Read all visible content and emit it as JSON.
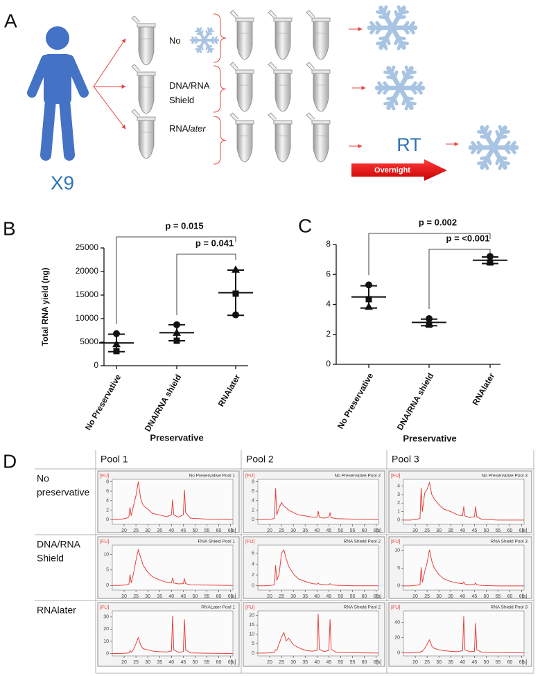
{
  "panel_labels": [
    "A",
    "B",
    "C",
    "D"
  ],
  "diagram": {
    "subject_count": "X9",
    "conditions": [
      {
        "lines": [
          "No"
        ]
      },
      {
        "lines": [
          "DNA/RNA",
          "Shield"
        ]
      },
      {
        "lines": [
          "RNA"
        ],
        "italic_suffix": "later"
      }
    ],
    "rt": "RT",
    "arrow_label": "Overnight"
  },
  "grid_d": {
    "columns": [
      "Pool 1",
      "Pool 2",
      "Pool 3"
    ],
    "rows": [
      [
        "No",
        "preservative"
      ],
      [
        "DNA/RNA",
        "Shield"
      ],
      [
        "RNAlater"
      ]
    ]
  },
  "chart_data": [
    {
      "type": "dot",
      "y_label": "Total RNA yield (ng)",
      "x_label": "Preservative",
      "categories": [
        "No Preservative",
        "DNA/RNA shield",
        "RNAlater"
      ],
      "series": [
        {
          "marker": "circle",
          "color": "#111111",
          "values": [
            6800,
            8700,
            10800
          ]
        },
        {
          "marker": "square",
          "color": "#111111",
          "values": [
            3100,
            5300,
            15300
          ]
        },
        {
          "marker": "triangle",
          "color": "#111111",
          "values": [
            4600,
            7000,
            20400
          ]
        }
      ],
      "means": [
        4833,
        7000,
        15500
      ],
      "sd": [
        1850,
        1700,
        4800
      ],
      "ylim": [
        0,
        25000
      ],
      "yticks": [
        0,
        5000,
        10000,
        15000,
        20000,
        25000
      ],
      "comparisons": [
        {
          "label": "p = 0.015",
          "from": 0,
          "to": 2
        },
        {
          "label": "p = 0.041",
          "from": 1,
          "to": 2
        }
      ]
    },
    {
      "type": "dot",
      "x_label": "Preservative",
      "categories": [
        "No Preservative",
        "DNA/RNA shield",
        "RNAlater"
      ],
      "series": [
        {
          "marker": "circle",
          "color": "#111111",
          "values": [
            5.3,
            3.05,
            7.2
          ]
        },
        {
          "marker": "square",
          "color": "#111111",
          "values": [
            4.35,
            2.65,
            6.8
          ]
        },
        {
          "marker": "triangle",
          "color": "#111111",
          "values": [
            3.85,
            2.7,
            6.85
          ]
        }
      ],
      "means": [
        4.5,
        2.8,
        6.95
      ],
      "sd": [
        0.74,
        0.22,
        0.22
      ],
      "ylim": [
        0,
        8
      ],
      "yticks": [
        0,
        2,
        4,
        6,
        8
      ],
      "comparisons": [
        {
          "label": "p = 0.002",
          "from": 0,
          "to": 2
        },
        {
          "label": "p = <0.001",
          "from": 1,
          "to": 2
        }
      ]
    },
    {
      "type": "line",
      "title": "No Preservative Pool 1",
      "color": "#e8413c",
      "x_unit": "[s]",
      "y_unit": "[FU]",
      "x": [
        15,
        18,
        21,
        22,
        22.5,
        23,
        24,
        25,
        26,
        27,
        28,
        30,
        32,
        35,
        38,
        40,
        40.5,
        41,
        43,
        45,
        45.5,
        46,
        48,
        55,
        66
      ],
      "values": [
        0,
        0,
        0.3,
        0.5,
        2.6,
        0.8,
        3,
        5,
        8,
        4.5,
        3,
        2.2,
        1.3,
        1,
        0.6,
        1,
        4.2,
        1,
        0.5,
        1,
        6.3,
        1.5,
        0.3,
        0.1,
        0
      ],
      "xlim": [
        15,
        66
      ],
      "xticks": [
        20,
        25,
        30,
        35,
        40,
        45,
        50,
        55,
        60,
        65
      ],
      "ylim": [
        -1,
        8.5
      ],
      "yticks": [
        0,
        2,
        4,
        6,
        8
      ]
    },
    {
      "type": "line",
      "title": "No Preservative Pool 2",
      "color": "#e8413c",
      "x_unit": "[s]",
      "y_unit": "[FU]",
      "x": [
        15,
        18,
        21,
        22,
        22.5,
        23,
        24,
        25,
        26,
        27,
        28,
        30,
        32,
        35,
        38,
        40,
        40.5,
        41,
        43,
        45,
        45.5,
        46,
        48,
        55,
        66
      ],
      "values": [
        0,
        0,
        0.1,
        0.3,
        6.6,
        1,
        2.5,
        3.6,
        2.8,
        2.5,
        2,
        1.5,
        1,
        0.8,
        0.5,
        0.5,
        1.8,
        0.5,
        0.3,
        0.5,
        1.5,
        0.4,
        0.2,
        0.1,
        0
      ],
      "xlim": [
        15,
        66
      ],
      "xticks": [
        20,
        25,
        30,
        35,
        40,
        45,
        50,
        55,
        60,
        65
      ],
      "ylim": [
        -1,
        8.5
      ],
      "yticks": [
        0,
        2,
        4,
        6,
        8
      ]
    },
    {
      "type": "line",
      "title": "No Preservative Pool 3",
      "color": "#e8413c",
      "x_unit": "[s]",
      "y_unit": "[FU]",
      "x": [
        15,
        18,
        21,
        22,
        22.5,
        23,
        24,
        25,
        26,
        27,
        28,
        30,
        32,
        35,
        38,
        40,
        40.5,
        41,
        43,
        45,
        45.5,
        46,
        48,
        55,
        66
      ],
      "values": [
        0,
        0,
        0.1,
        0.2,
        3.8,
        1,
        3.2,
        3.6,
        4.4,
        3,
        2.5,
        1.8,
        1.3,
        1,
        0.6,
        0.5,
        1.6,
        0.5,
        0.3,
        0.4,
        1.6,
        0.4,
        0.1,
        0,
        0
      ],
      "xlim": [
        15,
        66
      ],
      "xticks": [
        20,
        25,
        30,
        35,
        40,
        45,
        50,
        55,
        60,
        65
      ],
      "ylim": [
        -0.5,
        4.8
      ],
      "yticks": [
        0,
        1,
        2,
        3,
        4
      ]
    },
    {
      "type": "line",
      "title": "RNA Shield Pool 1",
      "color": "#e8413c",
      "x_unit": "[s]",
      "y_unit": "[FU]",
      "x": [
        15,
        18,
        21,
        22,
        22.5,
        23,
        24,
        25,
        26,
        27,
        28,
        30,
        32,
        35,
        38,
        40,
        40.5,
        41,
        43,
        45,
        45.5,
        46,
        48,
        55,
        66
      ],
      "values": [
        0,
        0,
        0.2,
        0.4,
        3.5,
        0.8,
        4,
        8,
        11.5,
        9,
        6.5,
        4.3,
        2.8,
        1.8,
        1,
        0.8,
        2.5,
        0.8,
        0.5,
        0.6,
        2.2,
        0.6,
        0.2,
        0.1,
        0
      ],
      "xlim": [
        15,
        66
      ],
      "xticks": [
        20,
        25,
        30,
        35,
        40,
        45,
        50,
        55,
        60,
        65
      ],
      "ylim": [
        -1.5,
        13
      ],
      "yticks": [
        0,
        5,
        10
      ]
    },
    {
      "type": "line",
      "title": "RNA Shield Pool 2",
      "color": "#e8413c",
      "x_unit": "[s]",
      "y_unit": "[FU]",
      "x": [
        15,
        18,
        21,
        22,
        22.5,
        23,
        24,
        25,
        26,
        27,
        28,
        30,
        32,
        35,
        38,
        40,
        40.5,
        41,
        43,
        45,
        45.5,
        46,
        48,
        55,
        66
      ],
      "values": [
        0,
        0,
        0.1,
        0.2,
        3.8,
        1,
        2.2,
        6,
        6.6,
        5,
        3.6,
        2.2,
        1.3,
        0.8,
        0.4,
        0.3,
        0.5,
        0.3,
        0.2,
        0.2,
        0.4,
        0.2,
        0.1,
        0,
        0
      ],
      "xlim": [
        15,
        66
      ],
      "xticks": [
        20,
        25,
        30,
        35,
        40,
        45,
        50,
        55,
        60,
        65
      ],
      "ylim": [
        -0.8,
        7.5
      ],
      "yticks": [
        0,
        2,
        4,
        6
      ]
    },
    {
      "type": "line",
      "title": "RNA Shield Pool 3",
      "color": "#e8413c",
      "x_unit": "[s]",
      "y_unit": "[FU]",
      "x": [
        15,
        18,
        21,
        22,
        22.5,
        23,
        24,
        25,
        26,
        27,
        28,
        30,
        32,
        35,
        38,
        40,
        40.5,
        41,
        43,
        45,
        45.5,
        46,
        48,
        55,
        66
      ],
      "values": [
        0,
        0,
        0.2,
        0.3,
        5.2,
        1,
        4,
        6.5,
        10.2,
        7,
        5,
        3.2,
        2,
        1.2,
        0.8,
        0.6,
        1.1,
        0.5,
        0.3,
        0.4,
        0.8,
        0.3,
        0.1,
        0,
        0
      ],
      "xlim": [
        15,
        66
      ],
      "xticks": [
        20,
        25,
        30,
        35,
        40,
        45,
        50,
        55,
        60,
        65
      ],
      "ylim": [
        -1.2,
        11.5
      ],
      "yticks": [
        0,
        5,
        10
      ]
    },
    {
      "type": "line",
      "title": "RNALater Pool 1",
      "color": "#e8413c",
      "x_unit": "[s]",
      "y_unit": "[FU]",
      "x": [
        15,
        18,
        21,
        22,
        22.5,
        23,
        24,
        25,
        26,
        27,
        28,
        30,
        32,
        35,
        38,
        40,
        40.5,
        41,
        43,
        45,
        45.5,
        46,
        48,
        55,
        66
      ],
      "values": [
        0,
        0,
        0.3,
        0.5,
        2.2,
        1,
        3.5,
        8,
        13,
        7,
        4,
        3,
        2,
        1.5,
        1.2,
        2,
        31,
        3,
        1,
        1.5,
        28,
        3,
        0.5,
        0.2,
        0
      ],
      "xlim": [
        15,
        66
      ],
      "xticks": [
        20,
        25,
        30,
        35,
        40,
        45,
        50,
        55,
        60,
        65
      ],
      "ylim": [
        -2,
        35
      ],
      "yticks": [
        0,
        10,
        20,
        30
      ]
    },
    {
      "type": "line",
      "title": "RNA Shield Pool 2",
      "color": "#e8413c",
      "x_unit": "[s]",
      "y_unit": "[FU]",
      "x": [
        15,
        18,
        21,
        22,
        22.5,
        23,
        24,
        25,
        26,
        27,
        28,
        30,
        32,
        35,
        38,
        40,
        40.5,
        41,
        43,
        45,
        45.5,
        46,
        48,
        55,
        66
      ],
      "values": [
        0,
        0,
        0.2,
        0.5,
        1.8,
        1.5,
        5,
        8.5,
        11,
        6.5,
        8,
        4.5,
        3,
        1.5,
        1,
        1.5,
        21,
        2,
        0.8,
        1.5,
        18,
        2,
        0.5,
        0.2,
        0
      ],
      "xlim": [
        15,
        66
      ],
      "xticks": [
        20,
        25,
        30,
        35,
        40,
        45,
        50,
        55,
        60,
        65
      ],
      "ylim": [
        -1.5,
        22.5
      ],
      "yticks": [
        0,
        5,
        10,
        15,
        20
      ]
    },
    {
      "type": "line",
      "title": "RNA Shield Pool 3",
      "color": "#e8413c",
      "x_unit": "[s]",
      "y_unit": "[FU]",
      "x": [
        15,
        18,
        21,
        22,
        22.5,
        23,
        24,
        25,
        26,
        27,
        28,
        30,
        32,
        35,
        38,
        40,
        40.5,
        41,
        43,
        45,
        45.5,
        46,
        48,
        55,
        66
      ],
      "values": [
        0,
        0,
        0.3,
        0.5,
        2.2,
        2,
        6,
        11,
        17,
        9,
        6,
        4,
        3,
        2,
        1.5,
        3,
        48,
        4,
        1.5,
        2,
        39,
        4,
        1,
        0.3,
        0
      ],
      "xlim": [
        15,
        66
      ],
      "xticks": [
        20,
        25,
        30,
        35,
        40,
        45,
        50,
        55,
        60,
        65
      ],
      "ylim": [
        -4,
        55
      ],
      "yticks": [
        0,
        20,
        40
      ]
    }
  ]
}
